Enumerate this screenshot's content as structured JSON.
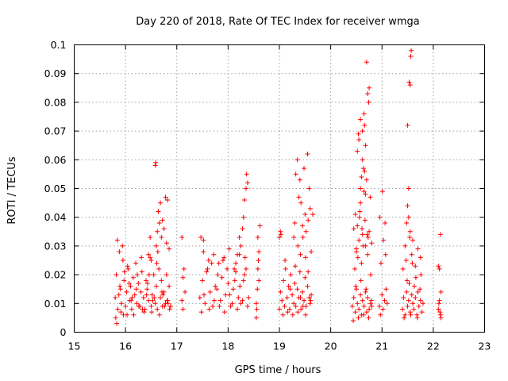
{
  "chart_data": {
    "type": "scatter",
    "title": "Day 220 of 2018, Rate Of TEC Index for receiver wmga",
    "xlabel": "GPS time / hours",
    "ylabel": "ROTI / TECUs",
    "xlim": [
      15,
      23
    ],
    "ylim": [
      0,
      0.1
    ],
    "xticks": [
      "15",
      "16",
      "17",
      "18",
      "19",
      "20",
      "21",
      "22",
      "23"
    ],
    "yticks": [
      "0",
      "0.01",
      "0.02",
      "0.03",
      "0.04",
      "0.05",
      "0.06",
      "0.07",
      "0.08",
      "0.09",
      "0.1"
    ],
    "grid": true,
    "marker": "+",
    "color": "#ff0000",
    "series": [
      {
        "name": "roti",
        "x": [
          15.8,
          15.82,
          15.85,
          15.88,
          15.9,
          15.92,
          15.95,
          15.97,
          16.0,
          16.02,
          16.05,
          16.08,
          16.1,
          16.12,
          16.15,
          16.18,
          16.2,
          16.22,
          16.25,
          16.28,
          16.3,
          16.32,
          16.35,
          16.38,
          16.4,
          16.42,
          16.45,
          16.48,
          16.5,
          16.52,
          16.55,
          16.58,
          16.6,
          16.62,
          16.65,
          16.68,
          16.7,
          16.72,
          16.75,
          16.78,
          16.8,
          16.82,
          16.85,
          16.88,
          15.81,
          15.84,
          15.87,
          15.91,
          15.94,
          15.98,
          16.03,
          16.07,
          16.11,
          16.16,
          16.21,
          16.26,
          16.31,
          16.36,
          16.41,
          16.46,
          16.51,
          16.56,
          16.61,
          16.66,
          16.71,
          16.76,
          16.81,
          16.86,
          15.83,
          15.89,
          15.96,
          16.04,
          16.13,
          16.23,
          16.33,
          16.43,
          16.53,
          16.63,
          16.73,
          16.83,
          16.58,
          16.59,
          16.6,
          16.62,
          16.64,
          16.66,
          16.68,
          16.7,
          16.72,
          16.75,
          16.78,
          16.8,
          16.82,
          16.85,
          16.45,
          16.48,
          16.5,
          17.1,
          17.12,
          17.14,
          17.16,
          17.1,
          17.12,
          17.45,
          17.5,
          17.55,
          17.6,
          17.65,
          17.7,
          17.75,
          17.8,
          17.85,
          17.9,
          17.95,
          18.0,
          18.05,
          18.1,
          18.15,
          18.2,
          18.25,
          18.3,
          18.35,
          18.4,
          17.48,
          17.53,
          17.58,
          17.63,
          17.68,
          17.73,
          17.78,
          17.83,
          17.88,
          17.93,
          17.98,
          18.03,
          18.08,
          18.13,
          18.18,
          18.23,
          18.28,
          18.33,
          18.38,
          17.52,
          17.62,
          17.72,
          17.82,
          17.92,
          18.02,
          18.12,
          18.22,
          18.32,
          18.25,
          18.28,
          18.3,
          18.32,
          18.35,
          18.36,
          18.38,
          18.22,
          18.18,
          18.15,
          17.47,
          17.52,
          18.55,
          18.57,
          18.58,
          18.6,
          18.62,
          18.55,
          18.58,
          18.6,
          18.56,
          18.59,
          19.0,
          19.02,
          19.05,
          19.08,
          19.1,
          19.12,
          19.15,
          19.18,
          19.2,
          19.22,
          19.25,
          19.28,
          19.3,
          19.32,
          19.35,
          19.38,
          19.4,
          19.42,
          19.45,
          19.48,
          19.5,
          19.52,
          19.55,
          19.58,
          19.6,
          19.62,
          19.03,
          19.07,
          19.11,
          19.16,
          19.21,
          19.26,
          19.31,
          19.36,
          19.41,
          19.46,
          19.51,
          19.56,
          19.61,
          19.28,
          19.3,
          19.32,
          19.35,
          19.38,
          19.4,
          19.42,
          19.45,
          19.48,
          19.5,
          19.52,
          19.55,
          19.58,
          19.6,
          19.62,
          19.65,
          19.36,
          19.41,
          19.46,
          19.51,
          19.56,
          19.0,
          19.02,
          20.42,
          20.45,
          20.48,
          20.5,
          20.52,
          20.55,
          20.58,
          20.6,
          20.62,
          20.65,
          20.68,
          20.7,
          20.72,
          20.75,
          20.78,
          20.8,
          20.44,
          20.49,
          20.54,
          20.59,
          20.64,
          20.69,
          20.74,
          20.79,
          20.45,
          20.48,
          20.5,
          20.52,
          20.55,
          20.58,
          20.6,
          20.62,
          20.65,
          20.68,
          20.7,
          20.72,
          20.75,
          20.78,
          20.8,
          20.47,
          20.53,
          20.57,
          20.63,
          20.67,
          20.73,
          20.77,
          20.5,
          20.56,
          20.61,
          20.66,
          20.71,
          20.52,
          20.55,
          20.58,
          20.62,
          20.65,
          20.68,
          20.72,
          20.75,
          20.54,
          20.66,
          20.7,
          20.74,
          20.6,
          20.62,
          20.64,
          20.58,
          20.68,
          20.95,
          20.97,
          21.0,
          21.02,
          21.05,
          21.08,
          21.1,
          20.96,
          21.01,
          21.06,
          20.98,
          21.03,
          21.07,
          21.4,
          21.42,
          21.45,
          21.48,
          21.5,
          21.52,
          21.55,
          21.58,
          21.6,
          21.62,
          21.65,
          21.68,
          21.7,
          21.72,
          21.75,
          21.78,
          21.8,
          21.43,
          21.49,
          21.56,
          21.63,
          21.69,
          21.76,
          21.41,
          21.47,
          21.53,
          21.59,
          21.66,
          21.74,
          21.45,
          21.48,
          21.5,
          21.52,
          21.55,
          21.58,
          21.6,
          21.65,
          21.7,
          21.75,
          21.5,
          21.53,
          21.55,
          21.56,
          21.57,
          21.52,
          21.54,
          22.1,
          22.12,
          22.14,
          22.15,
          22.1,
          22.12,
          22.14,
          22.11,
          22.13,
          22.15
        ],
        "y": [
          0.012,
          0.02,
          0.008,
          0.028,
          0.015,
          0.01,
          0.025,
          0.018,
          0.009,
          0.014,
          0.022,
          0.011,
          0.016,
          0.008,
          0.019,
          0.013,
          0.024,
          0.01,
          0.017,
          0.009,
          0.014,
          0.021,
          0.012,
          0.008,
          0.018,
          0.015,
          0.011,
          0.026,
          0.009,
          0.013,
          0.02,
          0.01,
          0.016,
          0.008,
          0.022,
          0.012,
          0.018,
          0.009,
          0.014,
          0.01,
          0.02,
          0.011,
          0.016,
          0.009,
          0.005,
          0.032,
          0.013,
          0.007,
          0.03,
          0.021,
          0.006,
          0.017,
          0.011,
          0.006,
          0.015,
          0.009,
          0.026,
          0.007,
          0.013,
          0.02,
          0.007,
          0.012,
          0.024,
          0.006,
          0.014,
          0.009,
          0.011,
          0.008,
          0.003,
          0.016,
          0.006,
          0.023,
          0.012,
          0.02,
          0.008,
          0.017,
          0.011,
          0.028,
          0.013,
          0.01,
          0.058,
          0.059,
          0.03,
          0.035,
          0.042,
          0.038,
          0.045,
          0.033,
          0.039,
          0.036,
          0.047,
          0.031,
          0.046,
          0.029,
          0.027,
          0.033,
          0.025,
          0.011,
          0.008,
          0.022,
          0.014,
          0.033,
          0.019,
          0.012,
          0.018,
          0.01,
          0.022,
          0.014,
          0.009,
          0.016,
          0.02,
          0.011,
          0.025,
          0.013,
          0.017,
          0.009,
          0.015,
          0.021,
          0.012,
          0.01,
          0.018,
          0.022,
          0.012,
          0.007,
          0.013,
          0.021,
          0.008,
          0.024,
          0.011,
          0.015,
          0.009,
          0.019,
          0.007,
          0.022,
          0.013,
          0.01,
          0.018,
          0.008,
          0.016,
          0.011,
          0.026,
          0.009,
          0.028,
          0.025,
          0.027,
          0.024,
          0.026,
          0.029,
          0.022,
          0.027,
          0.02,
          0.03,
          0.036,
          0.04,
          0.046,
          0.05,
          0.055,
          0.052,
          0.033,
          0.027,
          0.024,
          0.033,
          0.032,
          0.005,
          0.015,
          0.033,
          0.028,
          0.037,
          0.01,
          0.022,
          0.018,
          0.008,
          0.025,
          0.008,
          0.014,
          0.011,
          0.018,
          0.009,
          0.022,
          0.012,
          0.016,
          0.008,
          0.02,
          0.013,
          0.01,
          0.017,
          0.009,
          0.015,
          0.012,
          0.021,
          0.008,
          0.014,
          0.011,
          0.019,
          0.009,
          0.016,
          0.012,
          0.01,
          0.013,
          0.034,
          0.006,
          0.025,
          0.007,
          0.015,
          0.006,
          0.023,
          0.007,
          0.012,
          0.009,
          0.006,
          0.021,
          0.011,
          0.033,
          0.038,
          0.055,
          0.06,
          0.047,
          0.053,
          0.045,
          0.037,
          0.057,
          0.041,
          0.035,
          0.062,
          0.05,
          0.043,
          0.028,
          0.041,
          0.03,
          0.027,
          0.033,
          0.026,
          0.039,
          0.033,
          0.035,
          0.009,
          0.012,
          0.007,
          0.015,
          0.01,
          0.008,
          0.013,
          0.006,
          0.011,
          0.009,
          0.014,
          0.007,
          0.012,
          0.008,
          0.01,
          0.009,
          0.004,
          0.016,
          0.005,
          0.018,
          0.006,
          0.015,
          0.005,
          0.011,
          0.036,
          0.041,
          0.028,
          0.037,
          0.032,
          0.045,
          0.024,
          0.034,
          0.049,
          0.03,
          0.053,
          0.027,
          0.035,
          0.02,
          0.031,
          0.022,
          0.026,
          0.042,
          0.03,
          0.039,
          0.033,
          0.047,
          0.029,
          0.04,
          0.036,
          0.056,
          0.034,
          0.063,
          0.067,
          0.074,
          0.07,
          0.076,
          0.065,
          0.083,
          0.085,
          0.069,
          0.072,
          0.094,
          0.08,
          0.054,
          0.06,
          0.057,
          0.05,
          0.048,
          0.009,
          0.006,
          0.013,
          0.008,
          0.011,
          0.015,
          0.01,
          0.04,
          0.049,
          0.038,
          0.024,
          0.032,
          0.027,
          0.008,
          0.012,
          0.006,
          0.014,
          0.009,
          0.011,
          0.007,
          0.013,
          0.01,
          0.008,
          0.012,
          0.006,
          0.014,
          0.009,
          0.011,
          0.007,
          0.01,
          0.005,
          0.018,
          0.006,
          0.016,
          0.005,
          0.02,
          0.022,
          0.025,
          0.017,
          0.024,
          0.019,
          0.015,
          0.03,
          0.038,
          0.044,
          0.05,
          0.035,
          0.027,
          0.032,
          0.023,
          0.029,
          0.026,
          0.072,
          0.087,
          0.086,
          0.096,
          0.098,
          0.04,
          0.033,
          0.008,
          0.011,
          0.006,
          0.014,
          0.023,
          0.022,
          0.034,
          0.01,
          0.007,
          0.005
        ]
      }
    ]
  }
}
